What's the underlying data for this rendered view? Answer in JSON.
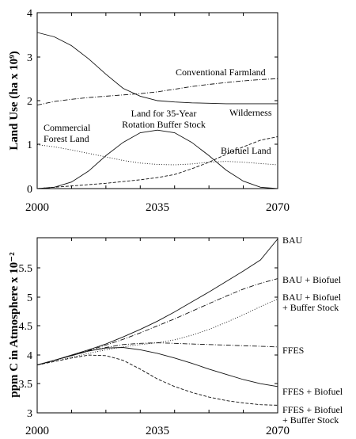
{
  "chart_data": [
    {
      "type": "line",
      "xlabel": "",
      "ylabel": "Land Use (ha x 10⁹)",
      "xlim": [
        2000,
        2070
      ],
      "ylim": [
        0,
        4
      ],
      "xticks": [
        "2000",
        "2035",
        "2070"
      ],
      "yticks": [
        "0",
        "1",
        "2",
        "3",
        "4"
      ],
      "annotations": [
        {
          "lines": [
            "Conventional Farmland"
          ]
        },
        {
          "lines": [
            "Wilderness"
          ]
        },
        {
          "lines": [
            "Biofuel Land"
          ]
        },
        {
          "lines": [
            "Land for 35-Year",
            "Rotation Buffer Stock"
          ]
        },
        {
          "lines": [
            "Commercial",
            "Forest Land"
          ]
        }
      ],
      "series": [
        {
          "dash": "solid",
          "x": [
            2000,
            2005,
            2010,
            2015,
            2020,
            2025,
            2030,
            2035,
            2040,
            2045,
            2050,
            2055,
            2060,
            2065,
            2070
          ],
          "y": [
            3.55,
            3.45,
            3.25,
            2.95,
            2.6,
            2.28,
            2.1,
            2.0,
            1.97,
            1.95,
            1.94,
            1.93,
            1.93,
            1.93,
            1.93
          ]
        },
        {
          "dash": "dashdot",
          "x": [
            2000,
            2005,
            2010,
            2015,
            2020,
            2025,
            2030,
            2035,
            2040,
            2045,
            2050,
            2055,
            2060,
            2065,
            2070
          ],
          "y": [
            1.9,
            1.98,
            2.03,
            2.07,
            2.1,
            2.13,
            2.16,
            2.2,
            2.26,
            2.32,
            2.37,
            2.41,
            2.45,
            2.48,
            2.5
          ]
        },
        {
          "dash": "solid",
          "x": [
            2000,
            2005,
            2010,
            2015,
            2020,
            2025,
            2030,
            2035,
            2040,
            2045,
            2050,
            2055,
            2060,
            2065,
            2070
          ],
          "y": [
            0.0,
            0.03,
            0.15,
            0.4,
            0.75,
            1.05,
            1.27,
            1.33,
            1.27,
            1.05,
            0.75,
            0.42,
            0.17,
            0.03,
            0.0
          ]
        },
        {
          "dash": "dashed",
          "x": [
            2000,
            2005,
            2010,
            2015,
            2020,
            2025,
            2030,
            2035,
            2040,
            2045,
            2050,
            2055,
            2060,
            2065,
            2070
          ],
          "y": [
            0.0,
            0.03,
            0.06,
            0.09,
            0.12,
            0.16,
            0.2,
            0.25,
            0.32,
            0.45,
            0.6,
            0.78,
            0.95,
            1.1,
            1.18
          ]
        },
        {
          "dash": "dotted",
          "x": [
            2000,
            2005,
            2010,
            2015,
            2020,
            2025,
            2030,
            2035,
            2040,
            2045,
            2050,
            2055,
            2060,
            2065,
            2070
          ],
          "y": [
            1.0,
            0.95,
            0.88,
            0.8,
            0.72,
            0.64,
            0.58,
            0.55,
            0.54,
            0.56,
            0.6,
            0.62,
            0.6,
            0.57,
            0.54
          ]
        }
      ]
    },
    {
      "type": "line",
      "xlabel": "",
      "ylabel": "ppm C in Atmosphere x 10⁻²",
      "xlim": [
        2000,
        2070
      ],
      "ylim": [
        3,
        6
      ],
      "xticks": [
        "2000",
        "2035",
        "2070"
      ],
      "yticks": [
        "3",
        "3.5",
        "4",
        "4.5",
        "5",
        "5.5"
      ],
      "series": [
        {
          "name": "BAU",
          "dash": "solid",
          "x": [
            2000,
            2005,
            2010,
            2015,
            2020,
            2025,
            2030,
            2035,
            2040,
            2045,
            2050,
            2055,
            2060,
            2065,
            2070
          ],
          "y": [
            3.82,
            3.9,
            3.99,
            4.08,
            4.18,
            4.3,
            4.43,
            4.57,
            4.73,
            4.9,
            5.07,
            5.25,
            5.43,
            5.62,
            5.98
          ]
        },
        {
          "name": "BAU + Biofuel",
          "dash": "dashdot",
          "x": [
            2000,
            2005,
            2010,
            2015,
            2020,
            2025,
            2030,
            2035,
            2040,
            2045,
            2050,
            2055,
            2060,
            2065,
            2070
          ],
          "y": [
            3.82,
            3.9,
            3.98,
            4.07,
            4.16,
            4.26,
            4.37,
            4.49,
            4.61,
            4.74,
            4.87,
            5.0,
            5.12,
            5.22,
            5.3
          ]
        },
        {
          "name": "BAU + Biofuel + Buffer Stock",
          "dash": "dotted",
          "x": [
            2000,
            2005,
            2010,
            2015,
            2020,
            2025,
            2030,
            2035,
            2040,
            2045,
            2050,
            2055,
            2060,
            2065,
            2070
          ],
          "y": [
            3.82,
            3.88,
            3.95,
            4.02,
            4.08,
            4.13,
            4.17,
            4.2,
            4.25,
            4.33,
            4.43,
            4.55,
            4.68,
            4.82,
            4.95
          ]
        },
        {
          "name": "FFES",
          "dash": "dashdot",
          "x": [
            2000,
            2005,
            2010,
            2015,
            2020,
            2025,
            2030,
            2035,
            2040,
            2045,
            2050,
            2055,
            2060,
            2065,
            2070
          ],
          "y": [
            3.82,
            3.9,
            3.98,
            4.06,
            4.12,
            4.17,
            4.19,
            4.2,
            4.19,
            4.18,
            4.17,
            4.16,
            4.15,
            4.14,
            4.13
          ]
        },
        {
          "name": "FFES + Biofuel",
          "dash": "solid",
          "x": [
            2000,
            2005,
            2010,
            2015,
            2020,
            2025,
            2030,
            2035,
            2040,
            2045,
            2050,
            2055,
            2060,
            2065,
            2070
          ],
          "y": [
            3.82,
            3.9,
            3.98,
            4.06,
            4.11,
            4.12,
            4.08,
            4.02,
            3.94,
            3.85,
            3.75,
            3.66,
            3.57,
            3.5,
            3.45
          ]
        },
        {
          "name": "FFES + Biofuel + Buffer Stock",
          "dash": "dashed",
          "x": [
            2000,
            2005,
            2010,
            2015,
            2020,
            2025,
            2030,
            2035,
            2040,
            2045,
            2050,
            2055,
            2060,
            2065,
            2070
          ],
          "y": [
            3.82,
            3.88,
            3.94,
            3.99,
            3.98,
            3.9,
            3.75,
            3.58,
            3.45,
            3.35,
            3.27,
            3.21,
            3.17,
            3.14,
            3.13
          ]
        }
      ]
    }
  ]
}
